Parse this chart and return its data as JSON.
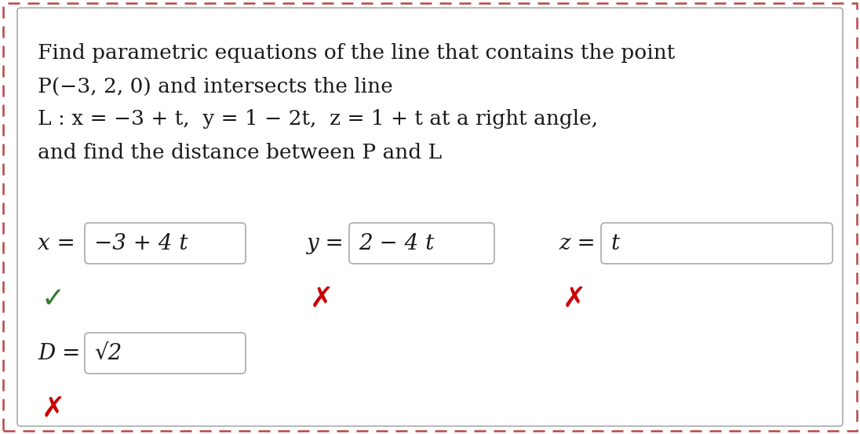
{
  "bg_color": "#ffffff",
  "outer_border_color": "#bb4444",
  "inner_border_color": "#aaaaaa",
  "problem_line1": "Find parametric equations of the line that contains the point",
  "problem_line2": "P(−3, 2, 0) and intersects the line",
  "problem_line3": "L : x = −3 + t,  y = 1 − 2t,  z = 1 + t at a right angle,",
  "problem_line4": "and find the distance between P and L",
  "eq1_label": "x = ",
  "eq1_value": "−3 + 4 t",
  "eq1_correct": true,
  "eq2_label": "y = ",
  "eq2_value": "2 − 4 t",
  "eq2_correct": false,
  "eq3_label": "z = ",
  "eq3_value": "t",
  "eq3_correct": false,
  "dist_label": "D = ",
  "dist_value": "√2",
  "dist_correct": false,
  "check_color": "#2e7d2e",
  "cross_color": "#cc0000",
  "box_edge_color": "#b0b0b0",
  "text_color": "#1a1a1a",
  "font_size_problem": 19,
  "font_size_answer": 20,
  "font_size_mark": 26
}
